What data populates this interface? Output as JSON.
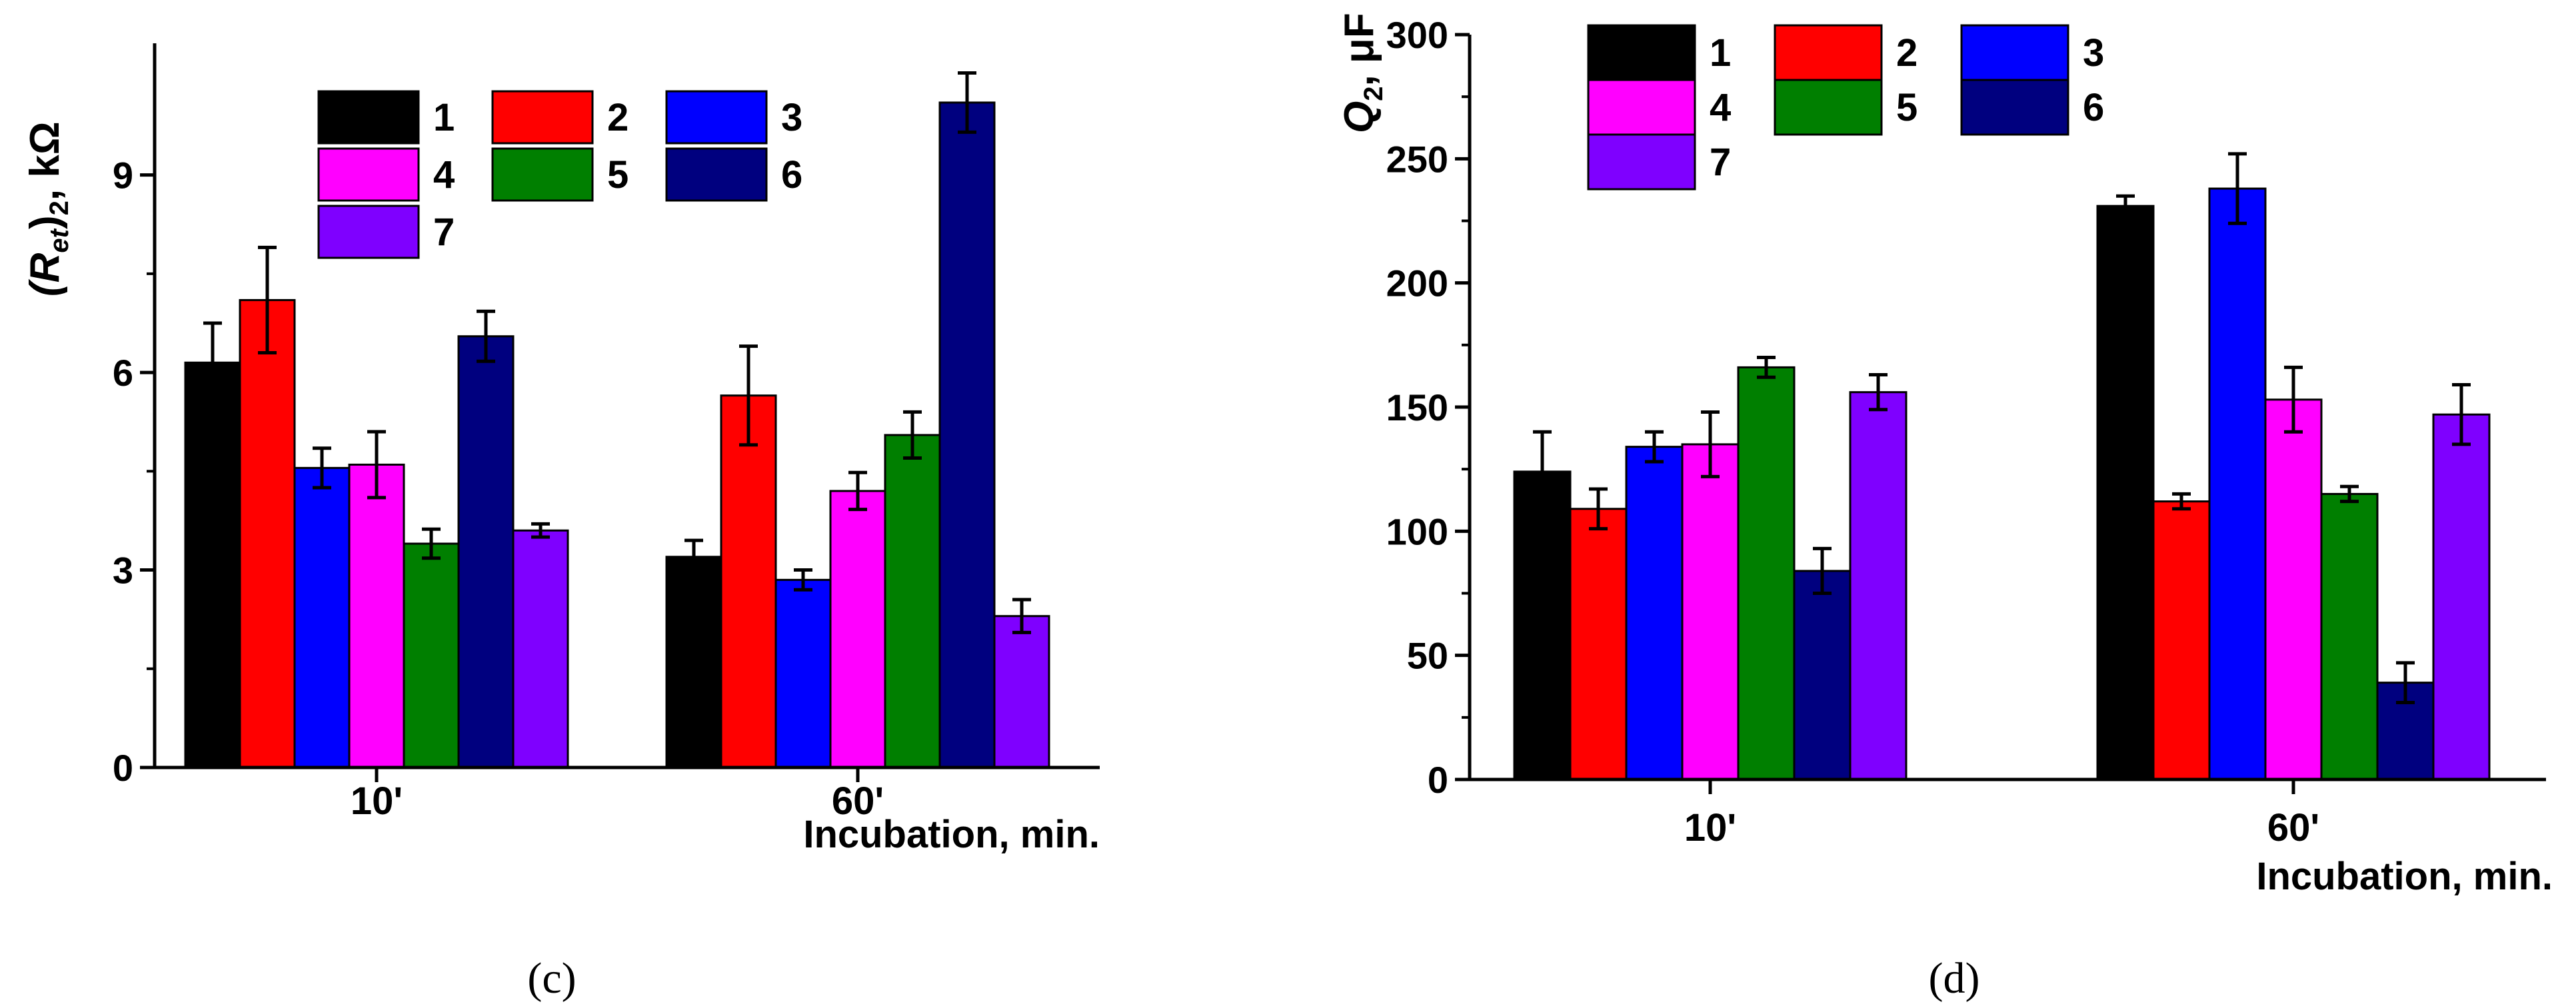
{
  "chart_data": [
    {
      "type": "bar",
      "panel_label": "(c)",
      "ylabel": {
        "open": "(R",
        "sub1": "et",
        "close": ")",
        "sub2": "2",
        "unit": ", kΩ"
      },
      "xlabel": "Incubation, min.",
      "categories": [
        "10'",
        "60'"
      ],
      "ylim": [
        0,
        11
      ],
      "yticks": [
        0,
        3,
        6,
        9
      ],
      "ytick_labels": [
        "0",
        "3",
        "6",
        "9"
      ],
      "legend_columns": 3,
      "legend_position": "top-center",
      "series": [
        {
          "name": "1",
          "color": "#000000",
          "values": [
            6.15,
            3.2
          ],
          "errors": [
            0.6,
            0.25
          ]
        },
        {
          "name": "2",
          "color": "#ff0000",
          "values": [
            7.1,
            5.65
          ],
          "errors": [
            0.8,
            0.75
          ]
        },
        {
          "name": "3",
          "color": "#0000ff",
          "values": [
            4.55,
            2.85
          ],
          "errors": [
            0.3,
            0.15
          ]
        },
        {
          "name": "4",
          "color": "#ff00ff",
          "values": [
            4.6,
            4.2
          ],
          "errors": [
            0.5,
            0.28
          ]
        },
        {
          "name": "5",
          "color": "#007f00",
          "values": [
            3.4,
            5.05
          ],
          "errors": [
            0.22,
            0.35
          ]
        },
        {
          "name": "6",
          "color": "#00007f",
          "values": [
            6.55,
            10.1
          ],
          "errors": [
            0.38,
            0.45
          ]
        },
        {
          "name": "7",
          "color": "#7f00ff",
          "values": [
            3.6,
            2.3
          ],
          "errors": [
            0.1,
            0.25
          ]
        }
      ]
    },
    {
      "type": "bar",
      "panel_label": "(d)",
      "ylabel": {
        "open": "Q",
        "sub1": "2",
        "close": "",
        "sub2": "",
        "unit": ", μF"
      },
      "xlabel": "Incubation, min.",
      "categories": [
        "10'",
        "60'"
      ],
      "ylim": [
        0,
        300
      ],
      "yticks": [
        0,
        50,
        100,
        150,
        200,
        250,
        300
      ],
      "ytick_labels": [
        "0",
        "50",
        "100",
        "150",
        "200",
        "250",
        "300"
      ],
      "legend_columns": 3,
      "legend_position": "top-left",
      "series": [
        {
          "name": "1",
          "color": "#000000",
          "values": [
            124,
            231
          ],
          "errors": [
            16,
            4
          ]
        },
        {
          "name": "2",
          "color": "#ff0000",
          "values": [
            109,
            112
          ],
          "errors": [
            8,
            3
          ]
        },
        {
          "name": "3",
          "color": "#0000ff",
          "values": [
            134,
            238
          ],
          "errors": [
            6,
            14
          ]
        },
        {
          "name": "4",
          "color": "#ff00ff",
          "values": [
            135,
            153
          ],
          "errors": [
            13,
            13
          ]
        },
        {
          "name": "5",
          "color": "#007f00",
          "values": [
            166,
            115
          ],
          "errors": [
            4,
            3
          ]
        },
        {
          "name": "6",
          "color": "#00007f",
          "values": [
            84,
            39
          ],
          "errors": [
            9,
            8
          ]
        },
        {
          "name": "7",
          "color": "#7f00ff",
          "values": [
            156,
            147
          ],
          "errors": [
            7,
            12
          ]
        }
      ]
    }
  ]
}
